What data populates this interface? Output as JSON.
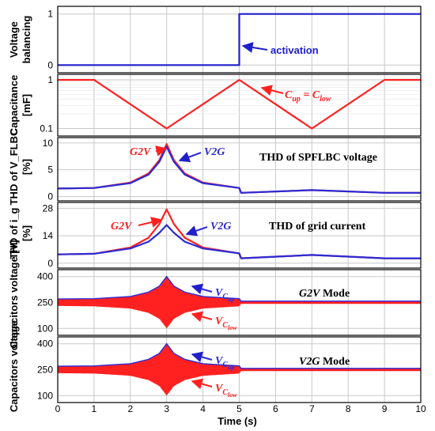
{
  "chart_data": [
    {
      "type": "line",
      "ylabel_lines": [
        "Voltage",
        "balancing"
      ],
      "yticks": [
        "0",
        "1"
      ],
      "ylim": [
        -0.15,
        1.15
      ],
      "series": [
        {
          "color": "#1f1fcc",
          "x": [
            0,
            5,
            5,
            10
          ],
          "y": [
            0,
            0,
            1,
            1
          ]
        }
      ],
      "annotations": [
        {
          "text": "activation",
          "color": "#1f1fcc",
          "arrow_to_x": 5,
          "arrow_to_y": 0.3
        }
      ]
    },
    {
      "type": "line",
      "ylabel_lines": [
        "Capacitance",
        "[mF]"
      ],
      "yticks": [
        "0.1",
        "1"
      ],
      "yscale": "log",
      "series": [
        {
          "color": "#ff2020",
          "x": [
            0,
            1,
            3,
            5,
            7,
            9,
            10
          ],
          "y": [
            1,
            1,
            0.1,
            1,
            0.1,
            1,
            1
          ]
        }
      ],
      "annotations": [
        {
          "text": "C_up = C_low",
          "color": "#ff2020"
        }
      ]
    },
    {
      "type": "line",
      "ylabel_lines": [
        "THD of V_FLBC",
        "[%]"
      ],
      "yticks": [
        "0",
        "5",
        "10"
      ],
      "ylim": [
        -0.8,
        11
      ],
      "title": "THD of SPFLBC voltage",
      "series": [
        {
          "name": "G2V",
          "color": "#ff2020",
          "x": [
            0,
            1,
            2,
            2.5,
            2.8,
            3.0,
            3.2,
            3.5,
            4.0,
            5.0,
            5.05,
            7.0,
            9.0,
            10
          ],
          "y": [
            1.5,
            1.6,
            2.6,
            4.3,
            6.8,
            9.8,
            6.8,
            4.3,
            2.6,
            1.6,
            0.7,
            1.2,
            0.7,
            0.7
          ]
        },
        {
          "name": "V2G",
          "color": "#2b2bd6",
          "x": [
            0,
            1,
            2,
            2.5,
            2.8,
            3.0,
            3.2,
            3.5,
            4.0,
            5.0,
            5.05,
            7.0,
            9.0,
            10
          ],
          "y": [
            1.5,
            1.6,
            2.5,
            4.1,
            6.5,
            9.3,
            6.5,
            4.1,
            2.5,
            1.6,
            0.7,
            1.2,
            0.7,
            0.7
          ]
        }
      ]
    },
    {
      "type": "line",
      "ylabel_lines": [
        "THD of i_g",
        "[%]"
      ],
      "yticks": [
        "0",
        "14",
        "28"
      ],
      "ylim": [
        -2.5,
        31
      ],
      "title": "THD of grid current",
      "series": [
        {
          "name": "G2V",
          "color": "#ff2020",
          "x": [
            0,
            1,
            2,
            2.5,
            2.8,
            3.0,
            3.2,
            3.5,
            4.0,
            5.0,
            5.05,
            7.0,
            9.0,
            10
          ],
          "y": [
            4.5,
            4.8,
            8,
            13,
            20,
            27.5,
            20,
            13,
            8,
            5,
            2.5,
            4.2,
            2.5,
            2.5
          ]
        },
        {
          "name": "V2G",
          "color": "#2b2bd6",
          "x": [
            0,
            1,
            2,
            2.5,
            2.8,
            3.0,
            3.2,
            3.5,
            4.0,
            5.0,
            5.05,
            7.0,
            9.0,
            10
          ],
          "y": [
            4.5,
            4.8,
            7.5,
            11,
            15.5,
            19.5,
            15.5,
            11,
            7.5,
            5,
            2.5,
            4.2,
            2.5,
            2.5
          ]
        }
      ]
    },
    {
      "type": "area",
      "ylabel_lines": [
        "Capacitors voltage [V]"
      ],
      "yticks": [
        "100",
        "250",
        "400"
      ],
      "ylim": [
        60,
        440
      ],
      "title": "G2V Mode",
      "upper": {
        "name": "V_Cup",
        "color": "#2b2bd6",
        "x": [
          0,
          1,
          2,
          2.5,
          2.8,
          3.0,
          3.2,
          3.5,
          4.0,
          5.0,
          5.05,
          10
        ],
        "y": [
          270,
          272,
          285,
          310,
          345,
          400,
          345,
          310,
          285,
          272,
          258,
          258
        ]
      },
      "lower": {
        "name": "V_Clow",
        "color": "#ff2020",
        "x": [
          0,
          1,
          2,
          2.5,
          2.8,
          3.0,
          3.2,
          3.5,
          4.0,
          5.0,
          5.05,
          10
        ],
        "y": [
          230,
          228,
          215,
          190,
          155,
          100,
          155,
          190,
          215,
          228,
          242,
          242
        ]
      }
    },
    {
      "type": "area",
      "ylabel_lines": [
        "Capacitors voltage"
      ],
      "yticks": [
        "100",
        "250",
        "400"
      ],
      "ylim": [
        60,
        440
      ],
      "title": "V2G Mode",
      "upper": {
        "name": "V_Cup",
        "color": "#2b2bd6",
        "x": [
          0,
          1,
          2,
          2.5,
          2.8,
          3.0,
          3.2,
          3.5,
          4.0,
          5.0,
          5.05,
          10
        ],
        "y": [
          270,
          272,
          285,
          310,
          345,
          400,
          345,
          310,
          285,
          272,
          258,
          258
        ]
      },
      "lower": {
        "name": "V_Clow",
        "color": "#ff2020",
        "x": [
          0,
          1,
          2,
          2.5,
          2.8,
          3.0,
          3.2,
          3.5,
          4.0,
          5.0,
          5.05,
          10
        ],
        "y": [
          230,
          228,
          215,
          190,
          155,
          100,
          155,
          190,
          215,
          228,
          242,
          242
        ]
      }
    }
  ],
  "x_axis": {
    "label": "Time (s)",
    "ticks": [
      "0",
      "1",
      "2",
      "3",
      "4",
      "5",
      "6",
      "7",
      "8",
      "9",
      "10"
    ],
    "xlim": [
      0,
      10
    ]
  },
  "grid": true
}
